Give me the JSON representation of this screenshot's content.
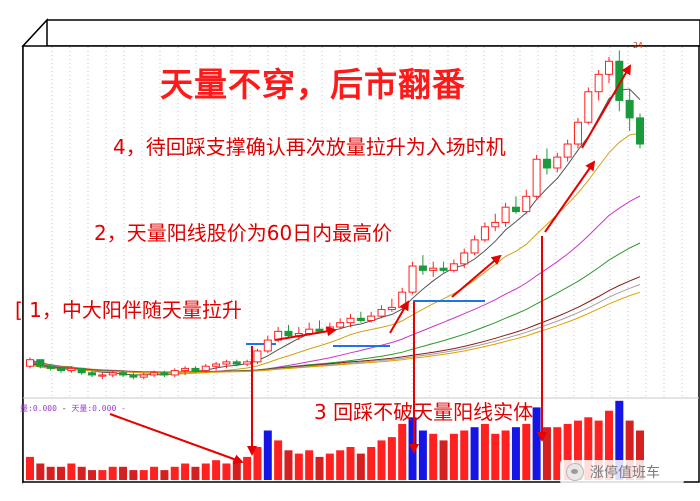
{
  "title": "天量不穿，后市翻番",
  "annotations": {
    "a1": "[ 1，中大阳伴随天量拉升",
    "a2": "2，天量阳线股价为60日内最高价",
    "a3": "3 回踩不破天量阳线实体",
    "a4": "4，待回踩支撑确认再次放量拉升为入场时机"
  },
  "volume_label": {
    "left": "量:0.000",
    "sep": " - ",
    "right": "天量:0.000 -"
  },
  "peak_label": "24",
  "watermark": "涨停值班车",
  "colors": {
    "up": "#ff2020",
    "down": "#1a9a3a",
    "spike": "#1515e6",
    "annotation": "#e60000"
  },
  "chart_data": {
    "type": "candlestick",
    "candles": [
      [
        9.8,
        10.2,
        9.7,
        10.1
      ],
      [
        10.1,
        10.0,
        9.7,
        9.8
      ],
      [
        9.8,
        9.9,
        9.6,
        9.7
      ],
      [
        9.7,
        9.8,
        9.5,
        9.6
      ],
      [
        9.6,
        9.8,
        9.5,
        9.7
      ],
      [
        9.7,
        9.7,
        9.4,
        9.5
      ],
      [
        9.5,
        9.6,
        9.3,
        9.4
      ],
      [
        9.4,
        9.5,
        9.2,
        9.4
      ],
      [
        9.4,
        9.6,
        9.3,
        9.5
      ],
      [
        9.5,
        9.6,
        9.3,
        9.4
      ],
      [
        9.4,
        9.5,
        9.2,
        9.3
      ],
      [
        9.3,
        9.5,
        9.2,
        9.4
      ],
      [
        9.4,
        9.6,
        9.3,
        9.5
      ],
      [
        9.5,
        9.6,
        9.3,
        9.4
      ],
      [
        9.4,
        9.7,
        9.3,
        9.6
      ],
      [
        9.6,
        9.8,
        9.4,
        9.7
      ],
      [
        9.7,
        9.8,
        9.5,
        9.6
      ],
      [
        9.6,
        9.9,
        9.5,
        9.8
      ],
      [
        9.8,
        10.0,
        9.6,
        9.9
      ],
      [
        9.9,
        10.1,
        9.7,
        10.0
      ],
      [
        10.0,
        10.1,
        9.8,
        9.9
      ],
      [
        9.9,
        10.1,
        9.8,
        10.0
      ],
      [
        10.0,
        10.6,
        9.9,
        10.5
      ],
      [
        10.5,
        11.2,
        10.4,
        11.0
      ],
      [
        11.0,
        11.6,
        10.9,
        11.4
      ],
      [
        11.4,
        11.7,
        11.1,
        11.2
      ],
      [
        11.2,
        11.6,
        11.0,
        11.3
      ],
      [
        11.3,
        11.8,
        11.2,
        11.5
      ],
      [
        11.5,
        11.9,
        11.3,
        11.4
      ],
      [
        11.4,
        11.8,
        11.3,
        11.6
      ],
      [
        11.6,
        12.0,
        11.5,
        11.8
      ],
      [
        11.8,
        12.2,
        11.6,
        12.0
      ],
      [
        12.0,
        12.3,
        11.8,
        11.9
      ],
      [
        11.9,
        12.3,
        11.8,
        12.1
      ],
      [
        12.1,
        12.6,
        12.0,
        12.4
      ],
      [
        12.4,
        12.9,
        12.3,
        12.5
      ],
      [
        12.5,
        13.4,
        12.4,
        13.2
      ],
      [
        13.2,
        14.6,
        13.1,
        14.4
      ],
      [
        14.4,
        14.9,
        14.0,
        14.2
      ],
      [
        14.2,
        14.6,
        13.9,
        14.3
      ],
      [
        14.3,
        14.6,
        14.1,
        14.2
      ],
      [
        14.2,
        14.7,
        14.1,
        14.5
      ],
      [
        14.5,
        15.2,
        14.3,
        15.0
      ],
      [
        15.0,
        15.8,
        14.9,
        15.6
      ],
      [
        15.6,
        16.4,
        15.5,
        16.2
      ],
      [
        16.2,
        16.8,
        16.0,
        16.4
      ],
      [
        16.4,
        17.3,
        16.2,
        17.1
      ],
      [
        17.1,
        17.6,
        16.8,
        16.9
      ],
      [
        16.9,
        17.9,
        16.8,
        17.6
      ],
      [
        17.6,
        19.5,
        17.5,
        19.3
      ],
      [
        19.3,
        19.8,
        18.6,
        18.9
      ],
      [
        18.9,
        19.6,
        18.7,
        19.4
      ],
      [
        19.4,
        20.2,
        19.2,
        20.0
      ],
      [
        20.0,
        21.2,
        19.8,
        21.0
      ],
      [
        21.0,
        22.6,
        20.9,
        22.4
      ],
      [
        22.4,
        23.4,
        22.0,
        23.2
      ],
      [
        23.2,
        24.0,
        22.8,
        23.8
      ],
      [
        23.8,
        24.3,
        21.5,
        22.0
      ],
      [
        22.0,
        22.5,
        20.6,
        21.2
      ],
      [
        21.2,
        21.4,
        19.8,
        20.0
      ]
    ],
    "volume": [
      0.35,
      0.25,
      0.2,
      0.2,
      0.25,
      0.2,
      0.15,
      0.15,
      0.2,
      0.2,
      0.15,
      0.15,
      0.2,
      0.15,
      0.2,
      0.25,
      0.2,
      0.25,
      0.3,
      0.25,
      0.3,
      0.35,
      0.5,
      0.75,
      0.6,
      0.45,
      0.4,
      0.45,
      0.35,
      0.4,
      0.45,
      0.5,
      0.4,
      0.5,
      0.6,
      0.65,
      0.85,
      0.95,
      0.75,
      0.7,
      0.6,
      0.7,
      0.75,
      0.8,
      0.85,
      0.7,
      0.75,
      0.8,
      0.85,
      1.1,
      0.8,
      0.8,
      0.85,
      0.9,
      0.95,
      0.9,
      1.05,
      1.2,
      0.9,
      0.75
    ],
    "volume_spike_days": [
      23,
      37,
      38,
      43,
      47,
      49,
      57
    ]
  }
}
